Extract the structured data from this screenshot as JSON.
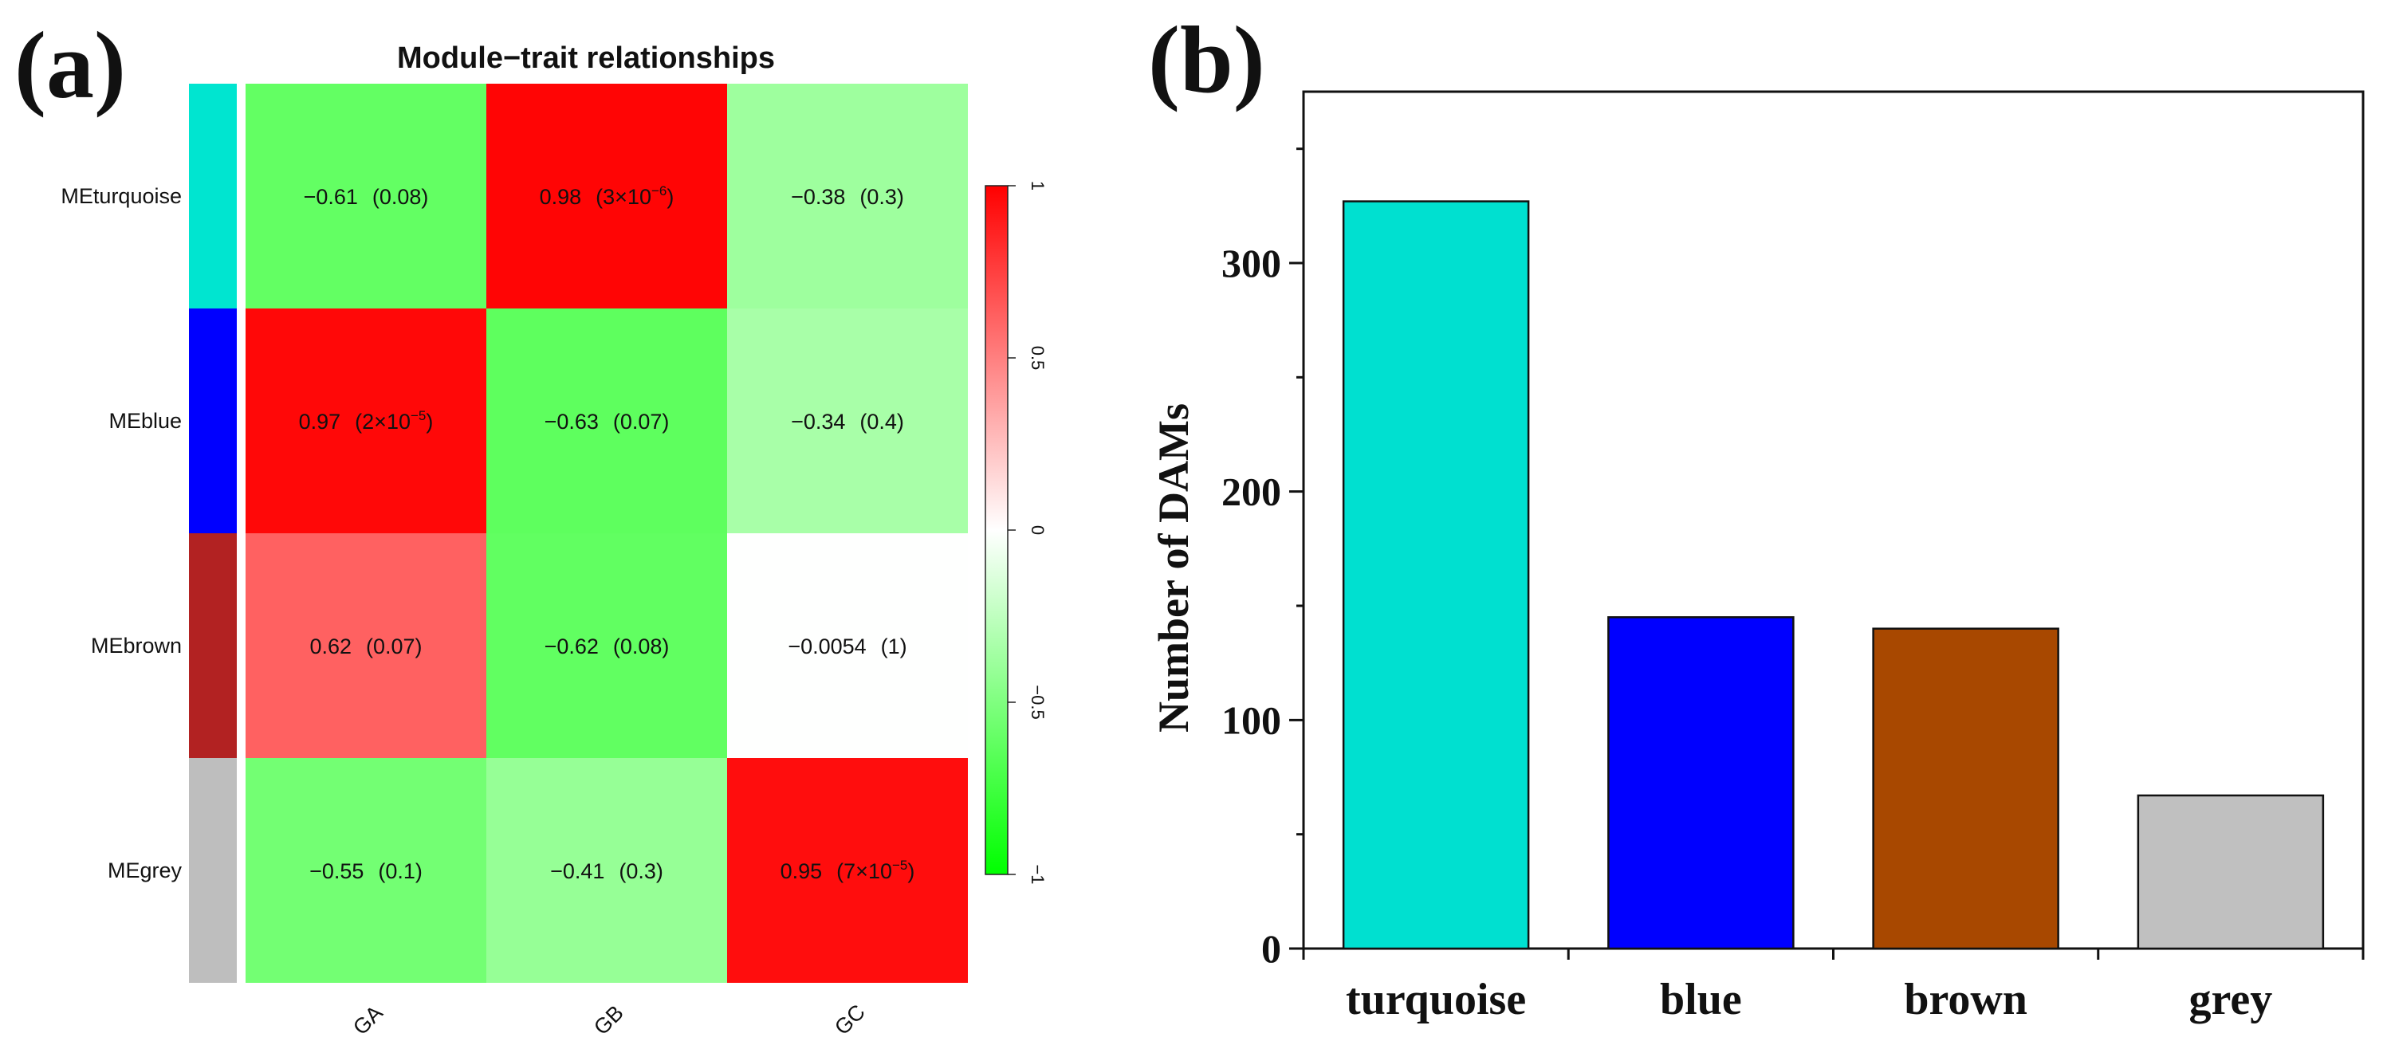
{
  "figure": {
    "panel_a_label": "(a)",
    "panel_b_label": "(b)"
  },
  "chart_data": [
    {
      "type": "heatmap",
      "title": "Module−trait relationships",
      "rows": [
        "MEturquoise",
        "MEblue",
        "MEbrown",
        "MEgrey"
      ],
      "row_module_colors": [
        "#00e5d0",
        "#0000ff",
        "#b22222",
        "#bebebe"
      ],
      "columns": [
        "GA",
        "GB",
        "GC"
      ],
      "values": [
        [
          -0.61,
          0.98,
          -0.38
        ],
        [
          0.97,
          -0.63,
          -0.34
        ],
        [
          0.62,
          -0.62,
          -0.0054
        ],
        [
          -0.55,
          -0.41,
          0.95
        ]
      ],
      "value_labels": [
        [
          "−0.61",
          "0.98",
          "−0.38"
        ],
        [
          "0.97",
          "−0.63",
          "−0.34"
        ],
        [
          "0.62",
          "−0.62",
          "−0.0054"
        ],
        [
          "−0.55",
          "−0.41",
          "0.95"
        ]
      ],
      "p_labels": [
        [
          {
            "base": "(0.08)"
          },
          {
            "base": "(3×10",
            "exp": "−6",
            "close": ")"
          },
          {
            "base": "(0.3)"
          }
        ],
        [
          {
            "base": "(2×10",
            "exp": "−5",
            "close": ")"
          },
          {
            "base": "(0.07)"
          },
          {
            "base": "(0.4)"
          }
        ],
        [
          {
            "base": "(0.07)"
          },
          {
            "base": "(0.08)"
          },
          {
            "base": "(1)"
          }
        ],
        [
          {
            "base": "(0.1)"
          },
          {
            "base": "(0.3)"
          },
          {
            "base": "(7×10",
            "exp": "−5",
            "close": ")"
          }
        ]
      ],
      "colorbar": {
        "range": [
          -1,
          1
        ],
        "ticks": [
          {
            "value": 1,
            "label": "1"
          },
          {
            "value": 0.5,
            "label": "0.5"
          },
          {
            "value": 0,
            "label": "0"
          },
          {
            "value": -0.5,
            "label": "−0.5"
          },
          {
            "value": -1,
            "label": "−1"
          }
        ],
        "colors": {
          "low": "#00ff00",
          "mid": "#ffffff",
          "high": "#ff0000"
        }
      }
    },
    {
      "type": "bar",
      "title": "",
      "xlabel": "",
      "ylabel": "Number of DAMs",
      "categories": [
        "turquoise",
        "blue",
        "brown",
        "grey"
      ],
      "values": [
        327,
        145,
        140,
        67
      ],
      "colors": [
        "#00e0d0",
        "#0000ff",
        "#a84800",
        "#c0c0c0"
      ],
      "ylim": [
        0,
        375
      ],
      "yticks": [
        0,
        100,
        200,
        300
      ],
      "ytick_labels": [
        "0",
        "100",
        "200",
        "300"
      ]
    }
  ]
}
